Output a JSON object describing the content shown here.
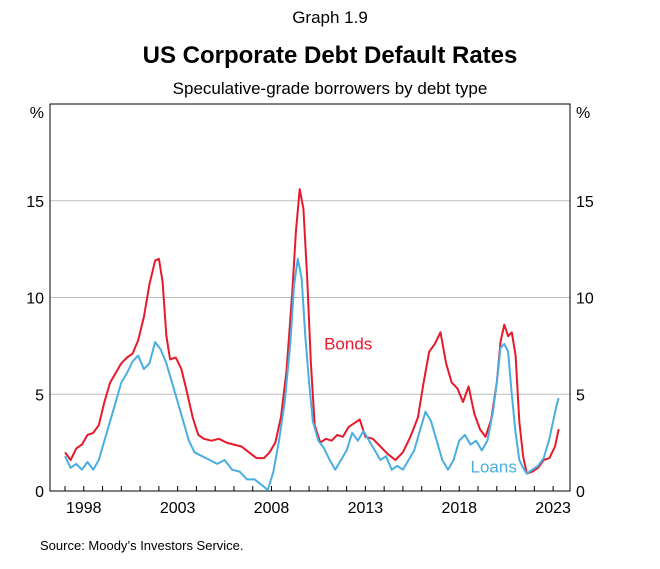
{
  "header": {
    "graph_number": "Graph 1.9",
    "title": "US Corporate Debt Default Rates",
    "subtitle": "Speculative-grade borrowers by debt type"
  },
  "footer": {
    "source": "Source:   Moody’s Investors Service."
  },
  "chart_data": {
    "type": "line",
    "title": "US Corporate Debt Default Rates",
    "subtitle": "Speculative-grade borrowers by debt type",
    "ylabel_left": "%",
    "ylabel_right": "%",
    "xlim": [
      1996.2,
      2023.9
    ],
    "ylim": [
      0,
      20
    ],
    "x_ticks": [
      {
        "value": 1998,
        "label": "1998"
      },
      {
        "value": 2003,
        "label": "2003"
      },
      {
        "value": 2008,
        "label": "2008"
      },
      {
        "value": 2013,
        "label": "2013"
      },
      {
        "value": 2018,
        "label": "2018"
      },
      {
        "value": 2023,
        "label": "2023"
      }
    ],
    "y_ticks": [
      {
        "value": 0,
        "label": "0"
      },
      {
        "value": 5,
        "label": "5"
      },
      {
        "value": 10,
        "label": "10"
      },
      {
        "value": 15,
        "label": "15"
      }
    ],
    "grid": "horizontal",
    "series": [
      {
        "name": "Bonds",
        "color": "#e8192c",
        "label_position": [
          2010.8,
          7.3
        ],
        "points": [
          [
            1997.0,
            2.0
          ],
          [
            1997.3,
            1.6
          ],
          [
            1997.6,
            2.2
          ],
          [
            1997.9,
            2.4
          ],
          [
            1998.2,
            2.9
          ],
          [
            1998.5,
            3.0
          ],
          [
            1998.8,
            3.4
          ],
          [
            1999.1,
            4.6
          ],
          [
            1999.4,
            5.6
          ],
          [
            1999.7,
            6.1
          ],
          [
            2000.0,
            6.6
          ],
          [
            2000.3,
            6.9
          ],
          [
            2000.6,
            7.1
          ],
          [
            2000.9,
            7.8
          ],
          [
            2001.2,
            9.0
          ],
          [
            2001.5,
            10.7
          ],
          [
            2001.8,
            11.9
          ],
          [
            2002.0,
            12.0
          ],
          [
            2002.2,
            10.8
          ],
          [
            2002.4,
            8.0
          ],
          [
            2002.6,
            6.8
          ],
          [
            2002.9,
            6.9
          ],
          [
            2003.2,
            6.3
          ],
          [
            2003.5,
            5.1
          ],
          [
            2003.8,
            3.8
          ],
          [
            2004.1,
            2.9
          ],
          [
            2004.4,
            2.7
          ],
          [
            2004.8,
            2.6
          ],
          [
            2005.2,
            2.7
          ],
          [
            2005.6,
            2.5
          ],
          [
            2006.0,
            2.4
          ],
          [
            2006.4,
            2.3
          ],
          [
            2006.8,
            2.0
          ],
          [
            2007.2,
            1.7
          ],
          [
            2007.6,
            1.7
          ],
          [
            2007.9,
            2.0
          ],
          [
            2008.2,
            2.5
          ],
          [
            2008.5,
            3.8
          ],
          [
            2008.8,
            6.2
          ],
          [
            2009.1,
            10.2
          ],
          [
            2009.3,
            13.4
          ],
          [
            2009.5,
            15.6
          ],
          [
            2009.7,
            14.6
          ],
          [
            2009.9,
            11.0
          ],
          [
            2010.1,
            6.6
          ],
          [
            2010.3,
            3.4
          ],
          [
            2010.6,
            2.5
          ],
          [
            2010.9,
            2.7
          ],
          [
            2011.2,
            2.6
          ],
          [
            2011.5,
            2.9
          ],
          [
            2011.8,
            2.8
          ],
          [
            2012.1,
            3.3
          ],
          [
            2012.4,
            3.5
          ],
          [
            2012.7,
            3.7
          ],
          [
            2013.0,
            2.8
          ],
          [
            2013.4,
            2.7
          ],
          [
            2013.8,
            2.3
          ],
          [
            2014.2,
            1.9
          ],
          [
            2014.6,
            1.6
          ],
          [
            2015.0,
            2.0
          ],
          [
            2015.4,
            2.8
          ],
          [
            2015.8,
            3.8
          ],
          [
            2016.1,
            5.6
          ],
          [
            2016.4,
            7.2
          ],
          [
            2016.7,
            7.6
          ],
          [
            2017.0,
            8.2
          ],
          [
            2017.3,
            6.6
          ],
          [
            2017.6,
            5.6
          ],
          [
            2017.9,
            5.3
          ],
          [
            2018.2,
            4.6
          ],
          [
            2018.5,
            5.4
          ],
          [
            2018.8,
            4.0
          ],
          [
            2019.1,
            3.2
          ],
          [
            2019.4,
            2.8
          ],
          [
            2019.7,
            3.7
          ],
          [
            2020.0,
            5.6
          ],
          [
            2020.2,
            7.7
          ],
          [
            2020.4,
            8.6
          ],
          [
            2020.6,
            8.0
          ],
          [
            2020.8,
            8.2
          ],
          [
            2021.0,
            7.0
          ],
          [
            2021.2,
            3.6
          ],
          [
            2021.4,
            1.8
          ],
          [
            2021.6,
            0.9
          ],
          [
            2021.9,
            1.0
          ],
          [
            2022.2,
            1.2
          ],
          [
            2022.5,
            1.6
          ],
          [
            2022.8,
            1.7
          ],
          [
            2023.1,
            2.3
          ],
          [
            2023.3,
            3.2
          ]
        ]
      },
      {
        "name": "Loans",
        "color": "#4aaee0",
        "label_position": [
          2018.6,
          0.95
        ],
        "points": [
          [
            1997.0,
            1.8
          ],
          [
            1997.3,
            1.2
          ],
          [
            1997.6,
            1.4
          ],
          [
            1997.9,
            1.1
          ],
          [
            1998.2,
            1.5
          ],
          [
            1998.5,
            1.1
          ],
          [
            1998.8,
            1.6
          ],
          [
            1999.1,
            2.6
          ],
          [
            1999.4,
            3.6
          ],
          [
            1999.7,
            4.6
          ],
          [
            2000.0,
            5.6
          ],
          [
            2000.3,
            6.1
          ],
          [
            2000.6,
            6.7
          ],
          [
            2000.9,
            7.0
          ],
          [
            2001.2,
            6.3
          ],
          [
            2001.5,
            6.6
          ],
          [
            2001.8,
            7.7
          ],
          [
            2002.1,
            7.3
          ],
          [
            2002.4,
            6.6
          ],
          [
            2002.7,
            5.6
          ],
          [
            2003.0,
            4.6
          ],
          [
            2003.3,
            3.6
          ],
          [
            2003.6,
            2.6
          ],
          [
            2003.9,
            2.0
          ],
          [
            2004.3,
            1.8
          ],
          [
            2004.7,
            1.6
          ],
          [
            2005.1,
            1.4
          ],
          [
            2005.5,
            1.6
          ],
          [
            2005.9,
            1.1
          ],
          [
            2006.3,
            1.0
          ],
          [
            2006.7,
            0.6
          ],
          [
            2007.1,
            0.6
          ],
          [
            2007.5,
            0.3
          ],
          [
            2007.8,
            0.05
          ],
          [
            2008.1,
            1.0
          ],
          [
            2008.4,
            2.6
          ],
          [
            2008.7,
            4.6
          ],
          [
            2009.0,
            7.6
          ],
          [
            2009.2,
            10.6
          ],
          [
            2009.4,
            12.0
          ],
          [
            2009.6,
            11.0
          ],
          [
            2009.8,
            8.0
          ],
          [
            2010.0,
            5.6
          ],
          [
            2010.2,
            3.6
          ],
          [
            2010.5,
            2.6
          ],
          [
            2010.8,
            2.2
          ],
          [
            2011.1,
            1.6
          ],
          [
            2011.4,
            1.1
          ],
          [
            2011.7,
            1.6
          ],
          [
            2012.0,
            2.1
          ],
          [
            2012.3,
            3.0
          ],
          [
            2012.6,
            2.6
          ],
          [
            2012.9,
            3.1
          ],
          [
            2013.2,
            2.6
          ],
          [
            2013.5,
            2.1
          ],
          [
            2013.8,
            1.6
          ],
          [
            2014.1,
            1.8
          ],
          [
            2014.4,
            1.1
          ],
          [
            2014.7,
            1.3
          ],
          [
            2015.0,
            1.1
          ],
          [
            2015.3,
            1.6
          ],
          [
            2015.6,
            2.1
          ],
          [
            2015.9,
            3.1
          ],
          [
            2016.2,
            4.1
          ],
          [
            2016.5,
            3.6
          ],
          [
            2016.8,
            2.6
          ],
          [
            2017.1,
            1.6
          ],
          [
            2017.4,
            1.1
          ],
          [
            2017.7,
            1.6
          ],
          [
            2018.0,
            2.6
          ],
          [
            2018.3,
            2.9
          ],
          [
            2018.6,
            2.4
          ],
          [
            2018.9,
            2.6
          ],
          [
            2019.2,
            2.1
          ],
          [
            2019.5,
            2.6
          ],
          [
            2019.8,
            4.1
          ],
          [
            2020.0,
            5.6
          ],
          [
            2020.2,
            7.4
          ],
          [
            2020.4,
            7.6
          ],
          [
            2020.6,
            7.2
          ],
          [
            2020.8,
            5.0
          ],
          [
            2021.0,
            3.0
          ],
          [
            2021.2,
            1.6
          ],
          [
            2021.4,
            1.2
          ],
          [
            2021.6,
            0.9
          ],
          [
            2021.9,
            1.1
          ],
          [
            2022.2,
            1.3
          ],
          [
            2022.5,
            1.7
          ],
          [
            2022.8,
            2.7
          ],
          [
            2023.0,
            3.6
          ],
          [
            2023.2,
            4.5
          ],
          [
            2023.3,
            4.8
          ]
        ]
      }
    ]
  }
}
